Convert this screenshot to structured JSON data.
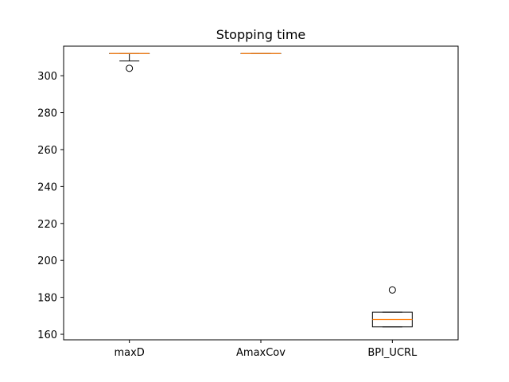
{
  "chart_data": {
    "type": "boxplot",
    "title": "Stopping time",
    "xlabel": "",
    "ylabel": "",
    "categories": [
      "maxD",
      "AmaxCov",
      "BPI_UCRL"
    ],
    "ylim": [
      157,
      316
    ],
    "yticks": [
      160,
      180,
      200,
      220,
      240,
      260,
      280,
      300
    ],
    "grid": false,
    "boxes": [
      {
        "label": "maxD",
        "whislo": 308,
        "q1": 312,
        "med": 312,
        "q3": 312,
        "whishi": 312,
        "fliers": [
          304
        ]
      },
      {
        "label": "AmaxCov",
        "whislo": 312,
        "q1": 312,
        "med": 312,
        "q3": 312,
        "whishi": 312,
        "fliers": []
      },
      {
        "label": "BPI_UCRL",
        "whislo": 164,
        "q1": 164,
        "med": 168,
        "q3": 172,
        "whishi": 172,
        "fliers": [
          184
        ]
      }
    ],
    "colors": {
      "box": "#000000",
      "median": "#ff7f0e",
      "flier": "#000000"
    }
  }
}
